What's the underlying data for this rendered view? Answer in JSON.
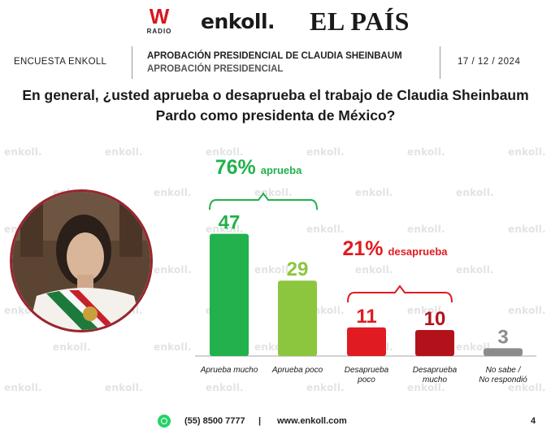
{
  "logos": {
    "w_letter": "W",
    "w_radio": "RADIO",
    "enkoll": "enkoll.",
    "elpais": "EL PAÍS"
  },
  "header": {
    "left": "ENCUESTA ENKOLL",
    "title": "APROBACIÓN PRESIDENCIAL DE CLAUDIA SHEINBAUM",
    "subtitle": "APROBACIÓN PRESIDENCIAL",
    "date": "17 / 12 / 2024"
  },
  "question_line1": "En general, ¿usted aprueba o desaprueba el trabajo de Claudia Sheinbaum",
  "question_line2": "Pardo como presidenta de México?",
  "watermark": "enkoll.",
  "colors": {
    "approve_strong": "#22b14c",
    "approve_soft": "#8cc63f",
    "disapprove_soft": "#e01b22",
    "disapprove_strong": "#b3121b",
    "no_answer": "#8c8c8c",
    "axis": "#a6a6a6"
  },
  "chart_data": {
    "type": "bar",
    "categories": [
      "Aprueba mucho",
      "Aprueba poco",
      "Desaprueba poco",
      "Desaprueba mucho",
      "No sabe / No respondió"
    ],
    "values": [
      47,
      29,
      11,
      10,
      3
    ],
    "ylim": [
      0,
      50
    ],
    "grid": false,
    "groups": [
      {
        "value": "76%",
        "label": "aprueba",
        "covers": [
          0,
          1
        ]
      },
      {
        "value": "21%",
        "label": "desaprueba",
        "covers": [
          2,
          3
        ]
      }
    ]
  },
  "footer": {
    "phone": "(55) 8500 7777",
    "separator": "|",
    "website": "www.enkoll.com",
    "page": "4"
  }
}
